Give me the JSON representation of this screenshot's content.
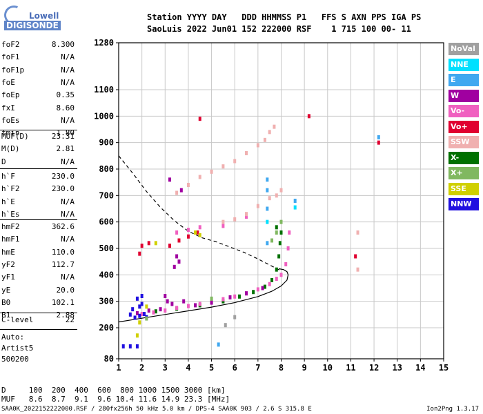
{
  "logo": {
    "top": "Lowell",
    "bottom": "DIGISONDE"
  },
  "header": {
    "line1": "Station YYYY DAY   DDD HHMMSS P1   FFS S AXN PPS IGA PS",
    "line2": "SaoLuis 2022 Jun01 152 222000 RSF    1 715 100 00- 11"
  },
  "params_a": [
    {
      "k": "foF2",
      "v": "8.300"
    },
    {
      "k": "foF1",
      "v": "N/A"
    },
    {
      "k": "foF1p",
      "v": "N/A"
    },
    {
      "k": "foE",
      "v": "N/A"
    },
    {
      "k": "foEp",
      "v": "0.35"
    },
    {
      "k": "fxI",
      "v": "8.60"
    },
    {
      "k": "foEs",
      "v": "N/A"
    },
    {
      "k": "fmin",
      "v": "1.80"
    }
  ],
  "params_b": [
    {
      "k": "MUF(D)",
      "v": "23.31"
    },
    {
      "k": "M(D)",
      "v": "2.81"
    },
    {
      "k": "D",
      "v": "N/A"
    }
  ],
  "params_c": [
    {
      "k": "h`F",
      "v": "230.0"
    },
    {
      "k": "h`F2",
      "v": "230.0"
    },
    {
      "k": "h`E",
      "v": "N/A"
    },
    {
      "k": "h`Es",
      "v": "N/A"
    }
  ],
  "params_d": [
    {
      "k": "hmF2",
      "v": "362.6"
    },
    {
      "k": "hmF1",
      "v": "N/A"
    },
    {
      "k": "hmE",
      "v": "110.0"
    },
    {
      "k": "yF2",
      "v": "112.7"
    },
    {
      "k": "yF1",
      "v": "N/A"
    },
    {
      "k": "yE",
      "v": "20.0"
    },
    {
      "k": "B0",
      "v": "102.1"
    },
    {
      "k": "B1",
      "v": "2.88"
    }
  ],
  "params_e": [
    {
      "k": "C-level",
      "v": "22"
    }
  ],
  "auto": [
    "Auto:",
    "Artist5",
    "500200"
  ],
  "legend": [
    {
      "label": "NoVal",
      "color": "#a0a0a0"
    },
    {
      "label": "NNE",
      "color": "#00e0ff"
    },
    {
      "label": "E",
      "color": "#40a8f0"
    },
    {
      "label": "W",
      "color": "#a000a0"
    },
    {
      "label": "Vo-",
      "color": "#f060c0"
    },
    {
      "label": "Vo+",
      "color": "#e00030"
    },
    {
      "label": "SSW",
      "color": "#f0b0b0"
    },
    {
      "label": "X-",
      "color": "#007000"
    },
    {
      "label": "X+",
      "color": "#80b860"
    },
    {
      "label": "SSE",
      "color": "#d0d000"
    },
    {
      "label": "NNW",
      "color": "#2010e0"
    }
  ],
  "muf_table": {
    "line1": "D     100  200  400  600  800 1000 1500 3000 [km]",
    "line2": "MUF   8.6  8.7  9.1  9.6 10.4 11.6 14.9 23.3 [MHz]"
  },
  "footer_left": "SAA0K_2022152222000.RSF / 280fx256h 50 kHz 5.0 km / DPS-4 SAA0K 903 / 2.6 S 315.8 E",
  "footer_right": "Ion2Png 1.3.17",
  "chart_data": {
    "type": "scatter",
    "title": "",
    "xlabel": "",
    "ylabel": "",
    "xlim": [
      1,
      15
    ],
    "ylim": [
      80,
      1280
    ],
    "x_ticks": [
      1,
      2,
      3,
      4,
      5,
      6,
      7,
      8,
      9,
      10,
      11,
      12,
      13,
      14,
      15
    ],
    "y_ticks": [
      80,
      200,
      300,
      400,
      500,
      600,
      700,
      800,
      900,
      1000,
      1100,
      1280
    ],
    "series": [
      {
        "name": "X-",
        "color": "#007000",
        "points": [
          [
            2.6,
            262
          ],
          [
            3.5,
            272
          ],
          [
            4.5,
            285
          ],
          [
            5.5,
            300
          ],
          [
            6.2,
            318
          ],
          [
            6.8,
            335
          ],
          [
            7.3,
            355
          ],
          [
            7.6,
            380
          ],
          [
            7.8,
            420
          ],
          [
            7.9,
            470
          ],
          [
            7.95,
            520
          ],
          [
            8.0,
            560
          ],
          [
            7.8,
            580
          ]
        ]
      },
      {
        "name": "Vo-",
        "color": "#f060c0",
        "points": [
          [
            2.0,
            252
          ],
          [
            2.5,
            258
          ],
          [
            3.0,
            265
          ],
          [
            3.5,
            275
          ],
          [
            4.0,
            282
          ],
          [
            4.5,
            290
          ],
          [
            5.0,
            298
          ],
          [
            5.5,
            308
          ],
          [
            6.0,
            318
          ],
          [
            6.5,
            330
          ],
          [
            7.0,
            345
          ],
          [
            7.5,
            365
          ],
          [
            7.8,
            385
          ],
          [
            8.0,
            400
          ],
          [
            8.2,
            440
          ],
          [
            8.3,
            500
          ],
          [
            8.35,
            560
          ],
          [
            4.5,
            580
          ],
          [
            5.5,
            585
          ],
          [
            6.5,
            620
          ],
          [
            3.5,
            560
          ],
          [
            4.0,
            570
          ]
        ]
      },
      {
        "name": "W",
        "color": "#a000a0",
        "points": [
          [
            1.8,
            255
          ],
          [
            2.3,
            265
          ],
          [
            2.8,
            270
          ],
          [
            3.3,
            290
          ],
          [
            3.8,
            300
          ],
          [
            4.3,
            285
          ],
          [
            5.0,
            295
          ],
          [
            5.8,
            315
          ],
          [
            6.5,
            330
          ],
          [
            7.2,
            350
          ],
          [
            3.5,
            470
          ],
          [
            3.6,
            450
          ],
          [
            3.4,
            430
          ],
          [
            3.7,
            720
          ],
          [
            3.2,
            760
          ],
          [
            3.1,
            300
          ],
          [
            3.0,
            320
          ]
        ]
      },
      {
        "name": "NNW",
        "color": "#2010e0",
        "points": [
          [
            1.2,
            128
          ],
          [
            1.5,
            128
          ],
          [
            1.8,
            128
          ],
          [
            1.5,
            250
          ],
          [
            1.7,
            238
          ],
          [
            1.9,
            245
          ],
          [
            2.1,
            252
          ],
          [
            1.6,
            270
          ],
          [
            2.0,
            290
          ],
          [
            1.8,
            310
          ],
          [
            2.0,
            320
          ],
          [
            1.9,
            280
          ],
          [
            2.2,
            240
          ]
        ]
      },
      {
        "name": "SSW",
        "color": "#f0b0b0",
        "points": [
          [
            3.5,
            710
          ],
          [
            4.0,
            740
          ],
          [
            4.5,
            770
          ],
          [
            5.0,
            790
          ],
          [
            5.5,
            810
          ],
          [
            6.0,
            830
          ],
          [
            6.5,
            860
          ],
          [
            7.0,
            890
          ],
          [
            7.3,
            910
          ],
          [
            7.5,
            940
          ],
          [
            7.7,
            960
          ],
          [
            5.5,
            600
          ],
          [
            6.0,
            610
          ],
          [
            6.5,
            630
          ],
          [
            7.0,
            660
          ],
          [
            7.5,
            690
          ],
          [
            7.8,
            700
          ],
          [
            8.0,
            720
          ],
          [
            11.3,
            560
          ],
          [
            11.3,
            420
          ]
        ]
      },
      {
        "name": "E",
        "color": "#40a8f0",
        "points": [
          [
            7.4,
            650
          ],
          [
            7.4,
            720
          ],
          [
            7.4,
            760
          ],
          [
            8.6,
            680
          ],
          [
            7.4,
            520
          ],
          [
            5.3,
            135
          ],
          [
            12.2,
            920
          ]
        ]
      },
      {
        "name": "Vo+",
        "color": "#e00030",
        "points": [
          [
            3.2,
            510
          ],
          [
            3.6,
            530
          ],
          [
            4.0,
            545
          ],
          [
            4.4,
            560
          ],
          [
            1.9,
            480
          ],
          [
            2.0,
            510
          ],
          [
            2.3,
            520
          ],
          [
            12.2,
            900
          ],
          [
            11.2,
            470
          ],
          [
            9.2,
            1000
          ],
          [
            4.5,
            990
          ]
        ]
      },
      {
        "name": "SSE",
        "color": "#d0d000",
        "points": [
          [
            4.5,
            550
          ],
          [
            4.3,
            560
          ],
          [
            2.6,
            520
          ],
          [
            2.2,
            280
          ],
          [
            1.8,
            170
          ],
          [
            1.9,
            220
          ]
        ]
      },
      {
        "name": "X+",
        "color": "#80b860",
        "points": [
          [
            2.2,
            235
          ],
          [
            7.8,
            560
          ],
          [
            8.0,
            600
          ],
          [
            7.6,
            530
          ],
          [
            5.0,
            310
          ]
        ]
      },
      {
        "name": "NNE",
        "color": "#00e0ff",
        "points": [
          [
            8.6,
            655
          ],
          [
            7.4,
            600
          ]
        ]
      },
      {
        "name": "NoVal",
        "color": "#a0a0a0",
        "points": [
          [
            5.6,
            210
          ],
          [
            6.0,
            240
          ]
        ]
      }
    ],
    "curves": [
      {
        "name": "profile",
        "style": "solid",
        "points": [
          [
            1,
            222
          ],
          [
            2,
            236
          ],
          [
            3,
            250
          ],
          [
            4,
            264
          ],
          [
            5,
            278
          ],
          [
            6,
            295
          ],
          [
            7,
            318
          ],
          [
            7.6,
            338
          ],
          [
            8.0,
            358
          ],
          [
            8.25,
            380
          ],
          [
            8.3,
            400
          ],
          [
            8.25,
            412
          ],
          [
            8.1,
            420
          ],
          [
            7.9,
            423
          ]
        ]
      },
      {
        "name": "muf",
        "style": "dashed",
        "points": [
          [
            1,
            850
          ],
          [
            1.6,
            785
          ],
          [
            2.2,
            715
          ],
          [
            2.8,
            655
          ],
          [
            3.4,
            605
          ],
          [
            4.0,
            565
          ],
          [
            4.6,
            540
          ],
          [
            5.2,
            525
          ],
          [
            5.8,
            505
          ],
          [
            6.4,
            485
          ],
          [
            7.0,
            460
          ],
          [
            7.6,
            433
          ],
          [
            8.0,
            415
          ]
        ]
      }
    ]
  }
}
